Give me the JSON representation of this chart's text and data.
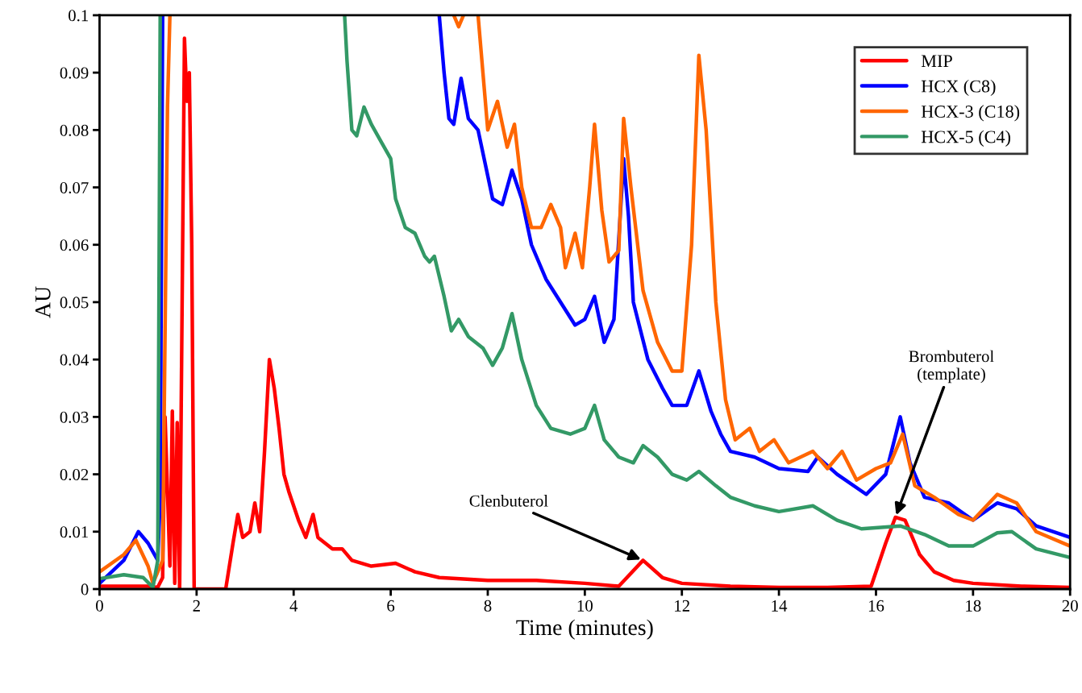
{
  "chart_data": {
    "type": "line",
    "xlabel": "Time (minutes)",
    "ylabel": "AU",
    "xlim": [
      0,
      20
    ],
    "ylim": [
      0,
      0.1
    ],
    "xticks": [
      0,
      2,
      4,
      6,
      8,
      10,
      12,
      14,
      16,
      18,
      20
    ],
    "yticks": [
      0,
      0.01,
      0.02,
      0.03,
      0.04,
      0.05,
      0.06,
      0.07,
      0.08,
      0.09,
      0.1
    ],
    "grid": false,
    "legend": "top right",
    "marker": "none",
    "line_style": "solid",
    "annotations": [
      {
        "text": "Clenbuterol",
        "x": 11.2,
        "y": 0.005
      },
      {
        "text": "Brombuterol\n(template)",
        "x": 16.4,
        "y": 0.0125
      }
    ],
    "series": [
      {
        "name": "MIP",
        "color": "#ff0000",
        "x": [
          0,
          1,
          1.2,
          1.3,
          1.35,
          1.45,
          1.5,
          1.55,
          1.6,
          1.65,
          1.75,
          1.8,
          1.85,
          1.9,
          1.95,
          2.6,
          2.75,
          2.85,
          2.95,
          3.1,
          3.2,
          3.3,
          3.4,
          3.5,
          3.6,
          3.7,
          3.8,
          3.9,
          4.1,
          4.25,
          4.4,
          4.5,
          4.8,
          5.0,
          5.2,
          5.6,
          6.1,
          6.5,
          7,
          8,
          9,
          10,
          10.7,
          11.2,
          11.6,
          12,
          13,
          14,
          15,
          15.9,
          16.2,
          16.4,
          16.6,
          16.9,
          17.2,
          17.6,
          18,
          19,
          20
        ],
        "values": [
          0.0005,
          0.0005,
          0.0003,
          0.002,
          0.03,
          0.004,
          0.031,
          0.001,
          0.029,
          0.0,
          0.096,
          0.085,
          0.09,
          0.06,
          0.0,
          0.0,
          0.008,
          0.013,
          0.009,
          0.01,
          0.015,
          0.01,
          0.024,
          0.04,
          0.035,
          0.028,
          0.02,
          0.017,
          0.012,
          0.009,
          0.013,
          0.009,
          0.007,
          0.007,
          0.005,
          0.004,
          0.0045,
          0.003,
          0.002,
          0.0015,
          0.0015,
          0.001,
          0.0005,
          0.005,
          0.002,
          0.001,
          0.0005,
          0.0003,
          0.0003,
          0.0005,
          0.008,
          0.0125,
          0.012,
          0.006,
          0.003,
          0.0015,
          0.001,
          0.0005,
          0.0003
        ]
      },
      {
        "name": "HCX (C8)",
        "color": "#0000ff",
        "x": [
          0,
          0.5,
          0.8,
          1.0,
          1.2,
          1.25,
          1.3,
          6.99,
          7.0,
          7.1,
          7.2,
          7.3,
          7.45,
          7.6,
          7.8,
          8.0,
          8.1,
          8.3,
          8.5,
          8.7,
          8.9,
          9.2,
          9.5,
          9.8,
          10.0,
          10.2,
          10.4,
          10.6,
          10.8,
          10.9,
          11.0,
          11.3,
          11.6,
          11.8,
          12.1,
          12.35,
          12.6,
          12.8,
          13,
          13.5,
          14,
          14.6,
          14.8,
          15.2,
          15.8,
          16.2,
          16.5,
          16.7,
          17,
          17.5,
          18,
          18.5,
          18.9,
          19.3,
          20
        ],
        "values": [
          0.001,
          0.005,
          0.01,
          0.008,
          0.005,
          0.016,
          0.1,
          null,
          0.1,
          0.09,
          0.082,
          0.081,
          0.089,
          0.082,
          0.08,
          0.072,
          0.068,
          0.067,
          0.073,
          0.068,
          0.06,
          0.054,
          0.05,
          0.046,
          0.047,
          0.051,
          0.043,
          0.047,
          0.075,
          0.065,
          0.05,
          0.04,
          0.035,
          0.032,
          0.032,
          0.038,
          0.031,
          0.027,
          0.024,
          0.023,
          0.021,
          0.0205,
          0.023,
          0.02,
          0.0165,
          0.02,
          0.03,
          0.022,
          0.016,
          0.015,
          0.012,
          0.015,
          0.014,
          0.011,
          0.009
        ]
      },
      {
        "name": "HCX-3 (C18)",
        "color": "#ff6600",
        "x": [
          0,
          0.5,
          0.75,
          1.0,
          1.1,
          1.3,
          1.4,
          1.45,
          7.29,
          7.3,
          7.4,
          7.5,
          7.79,
          7.8,
          7.9,
          8.0,
          8.2,
          8.4,
          8.55,
          8.7,
          8.9,
          9.1,
          9.3,
          9.5,
          9.6,
          9.8,
          9.95,
          10.1,
          10.2,
          10.35,
          10.5,
          10.7,
          10.8,
          10.95,
          11.2,
          11.5,
          11.8,
          12.0,
          12.2,
          12.35,
          12.5,
          12.7,
          12.9,
          13.1,
          13.4,
          13.6,
          13.9,
          14.2,
          14.7,
          15.0,
          15.3,
          15.6,
          16.0,
          16.3,
          16.55,
          16.8,
          17.2,
          17.7,
          18.0,
          18.5,
          18.9,
          19.3,
          20
        ],
        "values": [
          0.003,
          0.006,
          0.0085,
          0.004,
          0.001,
          0.005,
          0.084,
          0.1,
          null,
          0.1,
          0.098,
          0.1,
          null,
          0.1,
          0.09,
          0.08,
          0.085,
          0.077,
          0.081,
          0.07,
          0.063,
          0.063,
          0.067,
          0.063,
          0.056,
          0.062,
          0.056,
          0.07,
          0.081,
          0.066,
          0.057,
          0.059,
          0.082,
          0.07,
          0.052,
          0.043,
          0.038,
          0.038,
          0.06,
          0.093,
          0.08,
          0.05,
          0.033,
          0.026,
          0.028,
          0.024,
          0.026,
          0.022,
          0.024,
          0.021,
          0.024,
          0.019,
          0.021,
          0.022,
          0.027,
          0.018,
          0.016,
          0.013,
          0.012,
          0.0165,
          0.015,
          0.01,
          0.0075
        ]
      },
      {
        "name": "HCX-5 (C4)",
        "color": "#339966",
        "x": [
          0,
          0.5,
          0.9,
          1.1,
          1.2,
          1.25,
          5.04,
          5.05,
          5.1,
          5.2,
          5.3,
          5.45,
          5.6,
          5.8,
          6.0,
          6.1,
          6.3,
          6.5,
          6.7,
          6.8,
          6.9,
          7.1,
          7.25,
          7.4,
          7.6,
          7.9,
          8.1,
          8.3,
          8.5,
          8.7,
          9.0,
          9.3,
          9.7,
          10.0,
          10.2,
          10.4,
          10.7,
          11.0,
          11.2,
          11.5,
          11.8,
          12.1,
          12.35,
          12.7,
          13,
          13.5,
          14,
          14.7,
          15.2,
          15.7,
          16.5,
          17,
          17.5,
          18,
          18.5,
          18.8,
          19.3,
          20
        ],
        "values": [
          0.0018,
          0.0025,
          0.002,
          0.0003,
          0.005,
          0.1,
          null,
          0.1,
          0.092,
          0.08,
          0.079,
          0.084,
          0.081,
          0.078,
          0.075,
          0.068,
          0.063,
          0.062,
          0.058,
          0.057,
          0.058,
          0.051,
          0.045,
          0.047,
          0.044,
          0.042,
          0.039,
          0.042,
          0.048,
          0.04,
          0.032,
          0.028,
          0.027,
          0.028,
          0.032,
          0.026,
          0.023,
          0.022,
          0.025,
          0.023,
          0.02,
          0.019,
          0.0205,
          0.018,
          0.016,
          0.0145,
          0.0135,
          0.0145,
          0.012,
          0.0105,
          0.011,
          0.0095,
          0.0075,
          0.0075,
          0.0098,
          0.01,
          0.007,
          0.0055
        ]
      }
    ]
  }
}
